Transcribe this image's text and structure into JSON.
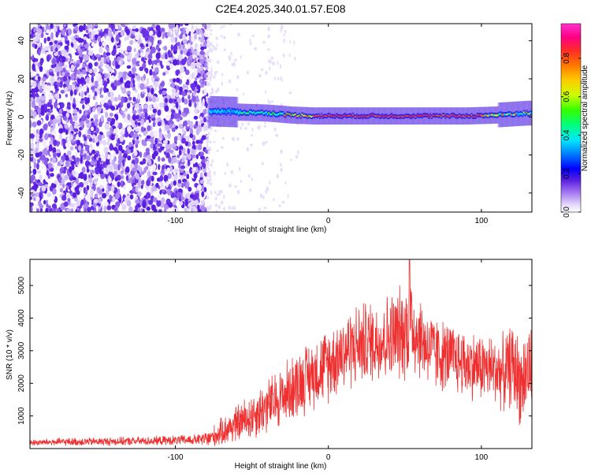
{
  "title": "C2E4.2025.340.01.57.E08",
  "chart_data": [
    {
      "type": "heatmap",
      "name": "spectrogram",
      "xlabel": "Height of straight line (km)",
      "ylabel": "Frequency (Hz)",
      "xlim": [
        -195,
        133
      ],
      "ylim": [
        -50,
        49
      ],
      "xticks": [
        -100,
        0,
        100
      ],
      "yticks": [
        -40,
        -20,
        0,
        20,
        40
      ],
      "colorbar": {
        "label": "Normalized spectral amplitude",
        "range": [
          0,
          0.98
        ],
        "ticks": [
          0.0,
          0.2,
          0.4,
          0.6,
          0.8
        ],
        "colors": [
          "#ffffff",
          "#e6dcfb",
          "#c7b0f5",
          "#8a5ce8",
          "#5a1ee0",
          "#0000ff",
          "#00a0ff",
          "#00e5ff",
          "#00ff80",
          "#33ff00",
          "#ccff00",
          "#ffcc00",
          "#ff7700",
          "#ff2a2a",
          "#ff0088",
          "#ff33cc"
        ]
      },
      "regions": [
        {
          "x_range": [
            -195,
            -79
          ],
          "description_level": 0.15,
          "frequency_range": [
            -50,
            49
          ]
        },
        {
          "x_range": [
            -79,
            133
          ],
          "signal_frequency": [
            3,
            2,
            1,
            0.5,
            0.5,
            0.5,
            0.5,
            1,
            2
          ],
          "signal_x": [
            -78,
            -40,
            -25,
            -10,
            20,
            60,
            90,
            110,
            130
          ]
        }
      ]
    },
    {
      "type": "line",
      "name": "snr",
      "xlabel": "Height of straight line (km)",
      "ylabel": "SNR (10 * v/v)",
      "xlim": [
        -195,
        133
      ],
      "ylim": [
        0,
        5800
      ],
      "xticks": [
        -100,
        0,
        100
      ],
      "yticks": [
        1000,
        2000,
        3000,
        4000,
        5000
      ],
      "color": "#ef3030",
      "series": [
        {
          "name": "SNR",
          "x": [
            -195,
            -180,
            -160,
            -140,
            -120,
            -100,
            -85,
            -78,
            -70,
            -60,
            -50,
            -40,
            -30,
            -20,
            -10,
            0,
            10,
            20,
            30,
            40,
            50,
            53,
            60,
            70,
            80,
            90,
            100,
            110,
            115,
            120,
            126,
            130,
            133
          ],
          "mean": [
            180,
            200,
            210,
            220,
            230,
            250,
            270,
            300,
            500,
            750,
            1000,
            1300,
            1600,
            2000,
            2300,
            2600,
            3000,
            3200,
            3300,
            3400,
            3600,
            3900,
            3400,
            2900,
            2800,
            2600,
            2500,
            2400,
            2300,
            2600,
            2000,
            2400,
            2500
          ],
          "spread": [
            90,
            110,
            120,
            120,
            130,
            140,
            160,
            260,
            400,
            550,
            700,
            800,
            900,
            1000,
            1000,
            1100,
            1150,
            1200,
            1200,
            1300,
            1400,
            1700,
            1200,
            1100,
            1000,
            1000,
            1000,
            1000,
            1100,
            1200,
            1300,
            1300,
            1200
          ],
          "peak": {
            "x": 53,
            "y": 5800
          }
        }
      ]
    }
  ]
}
